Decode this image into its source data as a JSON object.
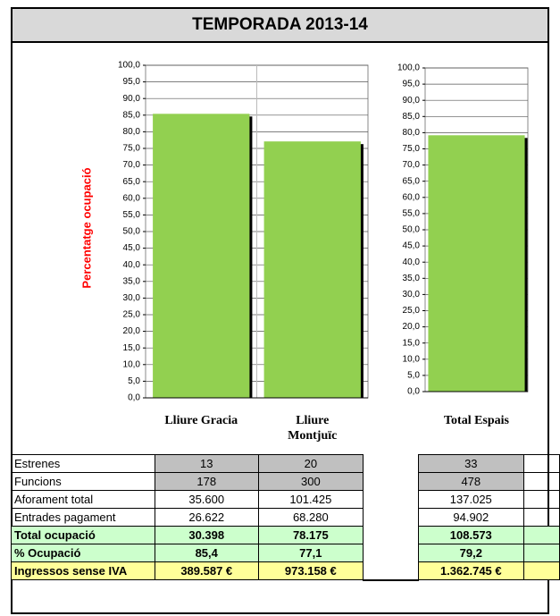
{
  "title": "TEMPORADA 2013-14",
  "chart_data": [
    {
      "type": "bar",
      "y_label": "Percentatge ocupació",
      "categories": [
        "Lliure Gracia",
        "Lliure Montjuïc"
      ],
      "values": [
        85.4,
        77.1
      ],
      "color": "#92d050",
      "grid": true,
      "ylim": [
        0,
        100
      ],
      "yticks": [
        {
          "value": 0,
          "label": "0,0"
        },
        {
          "value": 5,
          "label": "5,0"
        },
        {
          "value": 10,
          "label": "10,0"
        },
        {
          "value": 15,
          "label": "15,0"
        },
        {
          "value": 20,
          "label": "20,0"
        },
        {
          "value": 25,
          "label": "25,0"
        },
        {
          "value": 30,
          "label": "30,0"
        },
        {
          "value": 35,
          "label": "35,0"
        },
        {
          "value": 40,
          "label": "40,0"
        },
        {
          "value": 45,
          "label": "45,0"
        },
        {
          "value": 50,
          "label": "50,0"
        },
        {
          "value": 55,
          "label": "55,0"
        },
        {
          "value": 60,
          "label": "60,0"
        },
        {
          "value": 65,
          "label": "65,0"
        },
        {
          "value": 70,
          "label": "70,0"
        },
        {
          "value": 75,
          "label": "75,0"
        },
        {
          "value": 80,
          "label": "80,0"
        },
        {
          "value": 85,
          "label": "85,0"
        },
        {
          "value": 90,
          "label": "90,0"
        },
        {
          "value": 95,
          "label": "95,0"
        },
        {
          "value": 100,
          "label": "100,0"
        }
      ]
    },
    {
      "type": "bar",
      "categories": [
        "Total Espais"
      ],
      "values": [
        79.2
      ],
      "color": "#92d050",
      "grid": true,
      "ylim": [
        0,
        100
      ],
      "yticks": [
        {
          "value": 0,
          "label": "0,0"
        },
        {
          "value": 5,
          "label": "5,0"
        },
        {
          "value": 10,
          "label": "10,0"
        },
        {
          "value": 15,
          "label": "15,0"
        },
        {
          "value": 20,
          "label": "20,0"
        },
        {
          "value": 25,
          "label": "25,0"
        },
        {
          "value": 30,
          "label": "30,0"
        },
        {
          "value": 35,
          "label": "35,0"
        },
        {
          "value": 40,
          "label": "40,0"
        },
        {
          "value": 45,
          "label": "45,0"
        },
        {
          "value": 50,
          "label": "50,0"
        },
        {
          "value": 55,
          "label": "55,0"
        },
        {
          "value": 60,
          "label": "60,0"
        },
        {
          "value": 65,
          "label": "65,0"
        },
        {
          "value": 70,
          "label": "70,0"
        },
        {
          "value": 75,
          "label": "75,0"
        },
        {
          "value": 80,
          "label": "80,0"
        },
        {
          "value": 85,
          "label": "85,0"
        },
        {
          "value": 90,
          "label": "90,0"
        },
        {
          "value": 95,
          "label": "95,0"
        },
        {
          "value": 100,
          "label": "100,0"
        }
      ]
    }
  ],
  "table": {
    "rows": [
      [
        "Estrenes",
        "13",
        "20",
        "33"
      ],
      [
        "Funcions",
        "178",
        "300",
        "478"
      ],
      [
        "Aforament total",
        "35.600",
        "101.425",
        "137.025"
      ],
      [
        "Entrades pagament",
        "26.622",
        "68.280",
        "94.902"
      ],
      [
        "Total ocupació",
        "30.398",
        "78.175",
        "108.573"
      ],
      [
        "% Ocupació",
        "85,4",
        "77,1",
        "79,2"
      ],
      [
        "Ingressos sense IVA",
        "389.587 €",
        "973.158 €",
        "1.362.745 €"
      ]
    ]
  }
}
